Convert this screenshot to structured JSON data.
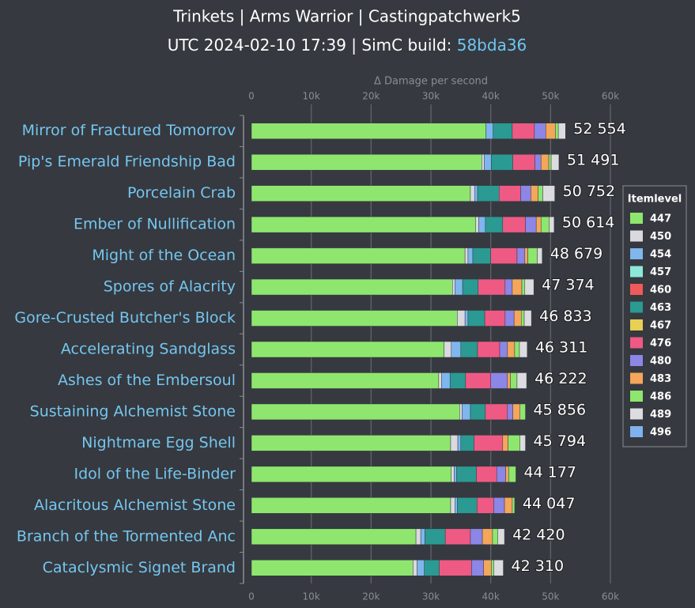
{
  "chart_data": {
    "type": "stacked_bar_horizontal",
    "title": "Trinkets | Arms Warrior | Castingpatchwerk5",
    "subtitle": "UTC 2024-02-10 17:39 | SimC build: ",
    "subtitle_link": "58bda36",
    "x_axis_label": "Δ Damage per second",
    "legend_title": "Itemlevel",
    "legend_position": "right",
    "grid": true,
    "categories": [
      "Mirror of Fractured Tomorrov",
      "Pip's Emerald Friendship Bad",
      "Porcelain Crab",
      "Ember of Nullification",
      "Might of the Ocean",
      "Spores of Alacrity",
      "Gore-Crusted Butcher's Block",
      "Accelerating Sandglass",
      "Ashes of the Embersoul",
      "Sustaining Alchemist Stone",
      "Nightmare Egg Shell",
      "Idol of the Life-Binder",
      "Alacritous Alchemist Stone",
      "Branch of the Tormented Anc",
      "Cataclysmic Signet Brand"
    ],
    "totals": [
      52554,
      51491,
      50752,
      50614,
      48679,
      47374,
      46833,
      46311,
      46222,
      45856,
      45794,
      44177,
      44047,
      42420,
      42310
    ],
    "total_labels": [
      "52 554",
      "51 491",
      "50 752",
      "50 614",
      "48 679",
      "47 374",
      "46 833",
      "46 311",
      "46 222",
      "45 856",
      "45 794",
      "44 177",
      "44 047",
      "42 420",
      "42 310"
    ],
    "xlim": [
      0,
      60000
    ],
    "xticks": [
      0,
      {
        "value": 10000,
        "label": "10k"
      },
      {
        "value": 20000,
        "label": "20k"
      },
      {
        "value": 30000,
        "label": "30k"
      },
      {
        "value": 40000,
        "label": "40k"
      },
      {
        "value": 50000,
        "label": "50k"
      },
      {
        "value": 60000,
        "label": "60k"
      }
    ],
    "series": [
      {
        "name": "447",
        "color": "#8ee66f",
        "values": [
          39200,
          38500,
          36600,
          37500,
          35700,
          33600,
          34400,
          32200,
          31300,
          34800,
          33300,
          33400,
          33300,
          27500,
          27000
        ]
      },
      {
        "name": "450",
        "color": "#d9d9de",
        "values": [
          0,
          400,
          700,
          500,
          500,
          400,
          1300,
          1200,
          500,
          400,
          1200,
          500,
          700,
          800,
          700
        ]
      },
      {
        "name": "454",
        "color": "#7fb6ee",
        "values": [
          1200,
          1200,
          500,
          1100,
          800,
          1300,
          500,
          1600,
          1400,
          1400,
          500,
          400,
          400,
          700,
          1200
        ]
      },
      {
        "name": "457",
        "color": "#8ee8d8",
        "values": [
          0,
          0,
          0,
          0,
          0,
          0,
          0,
          0,
          0,
          0,
          0,
          0,
          0,
          0,
          0
        ]
      },
      {
        "name": "460",
        "color": "#f05a5a",
        "values": [
          0,
          0,
          0,
          0,
          0,
          0,
          0,
          0,
          0,
          0,
          0,
          0,
          0,
          0,
          0
        ]
      },
      {
        "name": "463",
        "color": "#2a9a93",
        "values": [
          3200,
          3600,
          3600,
          2900,
          3000,
          2600,
          2800,
          2800,
          2600,
          2500,
          2200,
          3300,
          3300,
          3400,
          2500
        ]
      },
      {
        "name": "467",
        "color": "#e8d052",
        "values": [
          0,
          0,
          0,
          0,
          0,
          0,
          0,
          0,
          0,
          0,
          0,
          0,
          0,
          0,
          0
        ]
      },
      {
        "name": "476",
        "color": "#ee5a84",
        "values": [
          3700,
          3700,
          3600,
          3800,
          4400,
          4500,
          3400,
          3700,
          4200,
          3700,
          4800,
          3400,
          2800,
          4200,
          5400
        ]
      },
      {
        "name": "480",
        "color": "#8c86e6",
        "values": [
          1900,
          1000,
          1700,
          1800,
          1300,
          1200,
          1500,
          1300,
          2800,
          900,
          0,
          1500,
          1800,
          2000,
          2000
        ]
      },
      {
        "name": "483",
        "color": "#f4a65a",
        "values": [
          1600,
          1300,
          1200,
          800,
          500,
          1600,
          1200,
          1200,
          500,
          1200,
          900,
          500,
          1300,
          1700,
          1300
        ]
      },
      {
        "name": "486",
        "color": "#8ee66f",
        "values": [
          500,
          400,
          800,
          1400,
          1600,
          500,
          500,
          800,
          1100,
          900,
          2000,
          1200,
          400,
          900,
          400
        ]
      },
      {
        "name": "489",
        "color": "#dcdce0",
        "values": [
          1200,
          1300,
          2000,
          800,
          800,
          1500,
          1200,
          1300,
          1600,
          0,
          900,
          0,
          0,
          1100,
          1600
        ]
      },
      {
        "name": "496",
        "color": "#7fb2ee",
        "values": [
          0,
          0,
          0,
          0,
          0,
          0,
          0,
          0,
          0,
          0,
          0,
          0,
          0,
          0,
          0
        ]
      }
    ]
  }
}
